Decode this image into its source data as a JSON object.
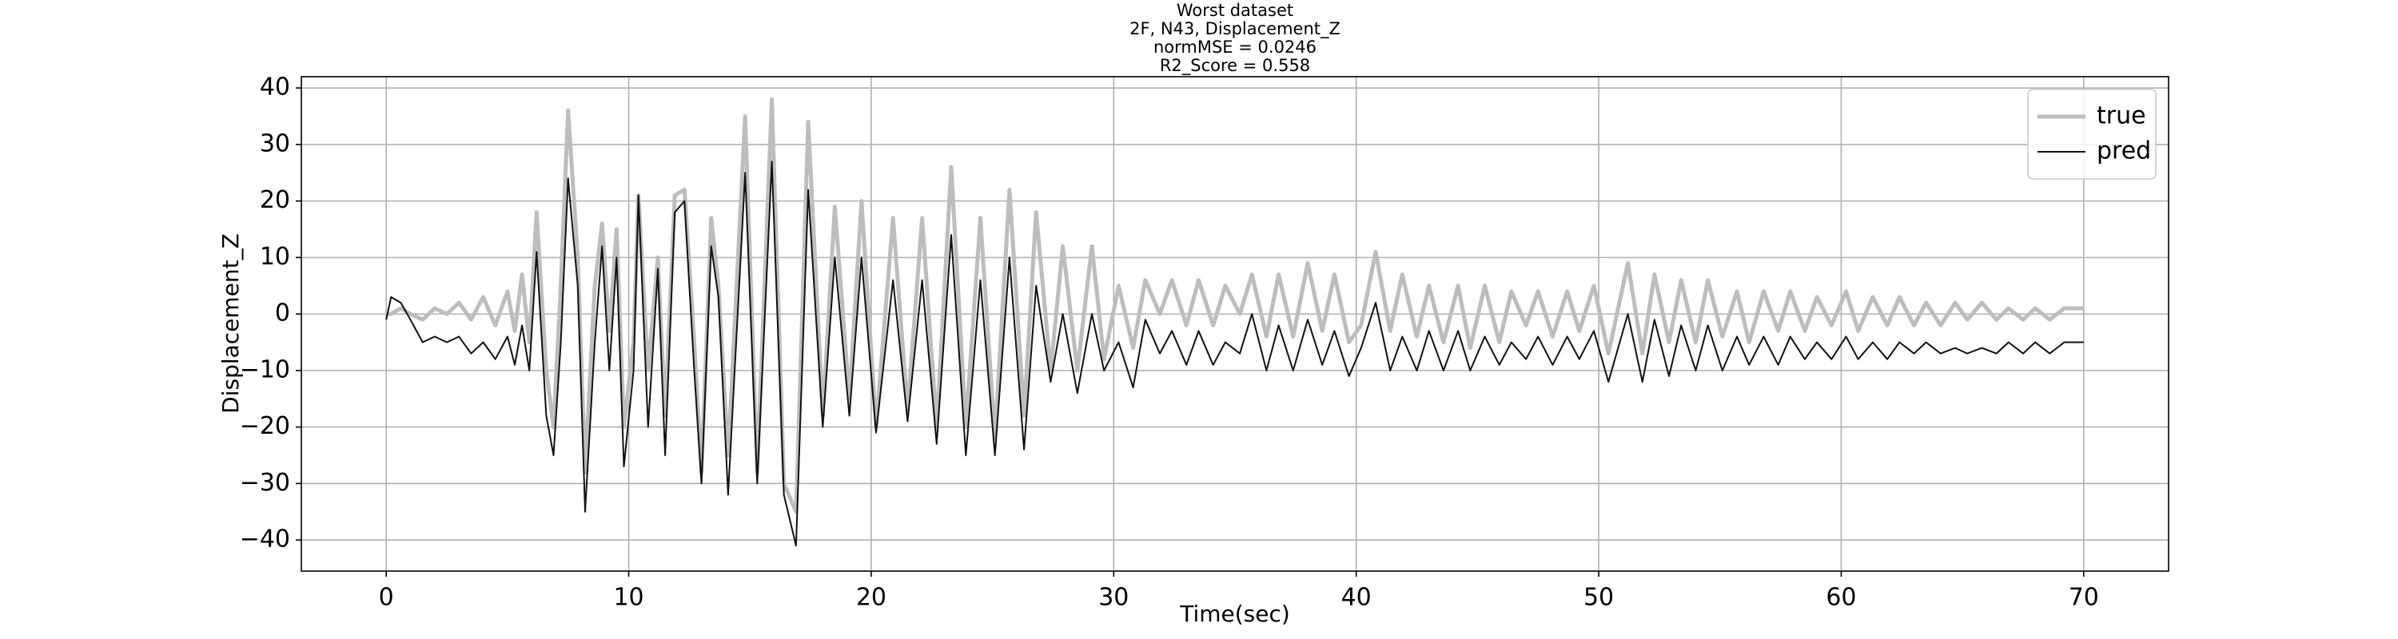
{
  "chart_data": {
    "type": "line",
    "title": "Worst dataset",
    "subtitle_lines": [
      "2F, N43, Displacement_Z",
      "normMSE = 0.0246",
      "R2_Score = 0.558"
    ],
    "x_label": "Time(sec)",
    "y_label": "Displacement_Z",
    "xlim": [
      -3.5,
      73.5
    ],
    "ylim": [
      -45.5,
      42
    ],
    "xticks": [
      0,
      10,
      20,
      30,
      40,
      50,
      60,
      70
    ],
    "yticks": [
      {
        "value": -40,
        "label": "−40"
      },
      {
        "value": -30,
        "label": "−30"
      },
      {
        "value": -20,
        "label": "−20"
      },
      {
        "value": -10,
        "label": "−10"
      },
      0,
      10,
      20,
      30,
      40
    ],
    "grid": true,
    "legend_position": "upper-right",
    "x": [
      0,
      0.2,
      0.6,
      1,
      1.5,
      2,
      2.5,
      3,
      3.5,
      4,
      4.5,
      5,
      5.3,
      5.6,
      5.9,
      6.2,
      6.6,
      6.9,
      7.2,
      7.5,
      7.9,
      8.2,
      8.6,
      8.9,
      9.2,
      9.5,
      9.8,
      10.2,
      10.4,
      10.8,
      11.2,
      11.5,
      11.9,
      12.3,
      12.7,
      13,
      13.4,
      13.7,
      14.1,
      14.8,
      15.3,
      15.9,
      16.4,
      16.9,
      17.4,
      18,
      18.5,
      19.1,
      19.6,
      20.2,
      20.9,
      21.5,
      22.1,
      22.7,
      23.3,
      23.9,
      24.5,
      25.1,
      25.7,
      26.3,
      26.8,
      27.4,
      27.9,
      28.5,
      29.1,
      29.6,
      30.2,
      30.8,
      31.3,
      31.9,
      32.4,
      33,
      33.5,
      34.1,
      34.6,
      35.2,
      35.7,
      36.3,
      36.8,
      37.4,
      38,
      38.6,
      39.1,
      39.7,
      40.2,
      40.8,
      41.4,
      41.9,
      42.5,
      43,
      43.6,
      44.2,
      44.7,
      45.3,
      45.9,
      46.4,
      47,
      47.5,
      48.1,
      48.7,
      49.2,
      49.8,
      50.4,
      51.2,
      51.8,
      52.3,
      52.9,
      53.4,
      54,
      54.5,
      55.1,
      55.7,
      56.2,
      56.8,
      57.4,
      57.9,
      58.5,
      59,
      59.6,
      60.2,
      60.7,
      61.3,
      61.9,
      62.4,
      63,
      63.5,
      64.1,
      64.7,
      65.2,
      65.8,
      66.4,
      66.9,
      67.5,
      68,
      68.6,
      69.2,
      70
    ],
    "series": [
      {
        "name": "true",
        "color": "#bdbdbd",
        "width": 5,
        "values": [
          0,
          0,
          1,
          0,
          -1,
          1,
          0,
          2,
          -1,
          3,
          -2,
          4,
          -3,
          7,
          -5,
          18,
          -10,
          -20,
          5,
          36,
          10,
          -28,
          5,
          16,
          -3,
          15,
          -20,
          -5,
          21,
          -10,
          10,
          -18,
          21,
          22,
          -5,
          -28,
          17,
          5,
          -25,
          35,
          -28,
          38,
          -30,
          -35,
          34,
          -18,
          19,
          -15,
          20,
          -20,
          17,
          -17,
          17,
          -20,
          26,
          -20,
          17,
          -22,
          22,
          -18,
          18,
          -10,
          12,
          -10,
          12,
          -8,
          5,
          -6,
          6,
          0,
          6,
          -2,
          6,
          -2,
          5,
          0,
          7,
          -4,
          7,
          -4,
          9,
          -3,
          7,
          -5,
          -2,
          11,
          -3,
          7,
          -4,
          5,
          -5,
          5,
          -6,
          5,
          -5,
          4,
          -2,
          4,
          -4,
          4,
          -3,
          5,
          -7,
          9,
          -7,
          7,
          -5,
          6,
          -5,
          6,
          -4,
          4,
          -5,
          4,
          -3,
          4,
          -3,
          3,
          -2,
          4,
          -3,
          3,
          -2,
          3,
          -2,
          2,
          -2,
          2,
          -1,
          2,
          -1,
          1,
          -1,
          1,
          -1,
          1,
          1
        ]
      },
      {
        "name": "pred",
        "color": "#111111",
        "width": 2,
        "values": [
          -1,
          3,
          2,
          -1,
          -5,
          -4,
          -5,
          -4,
          -7,
          -5,
          -8,
          -4,
          -9,
          -2,
          -10,
          11,
          -18,
          -25,
          -5,
          24,
          5,
          -35,
          -5,
          12,
          -10,
          10,
          -27,
          -10,
          21,
          -20,
          8,
          -25,
          18,
          20,
          -10,
          -30,
          12,
          3,
          -32,
          25,
          -30,
          27,
          -32,
          -41,
          22,
          -20,
          10,
          -18,
          10,
          -21,
          6,
          -19,
          6,
          -23,
          14,
          -25,
          6,
          -25,
          10,
          -24,
          5,
          -12,
          0,
          -14,
          0,
          -10,
          -5,
          -13,
          -1,
          -7,
          -3,
          -9,
          -3,
          -9,
          -5,
          -7,
          0,
          -10,
          -2,
          -10,
          -1,
          -9,
          -3,
          -11,
          -6,
          2,
          -10,
          -4,
          -10,
          -3,
          -10,
          -3,
          -10,
          -4,
          -9,
          -5,
          -8,
          -4,
          -9,
          -4,
          -8,
          -3,
          -12,
          0,
          -12,
          -1,
          -11,
          -2,
          -10,
          -2,
          -10,
          -4,
          -9,
          -4,
          -9,
          -4,
          -8,
          -5,
          -8,
          -4,
          -8,
          -5,
          -8,
          -5,
          -7,
          -5,
          -7,
          -6,
          -7,
          -6,
          -7,
          -5,
          -7,
          -5,
          -7,
          -5,
          -5
        ]
      }
    ]
  }
}
